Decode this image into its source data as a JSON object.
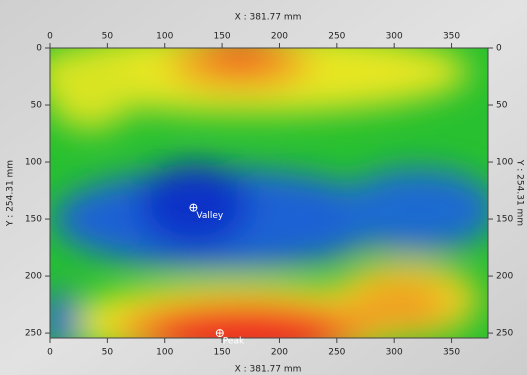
{
  "chart_data": {
    "type": "heatmap",
    "x_title": "X : 381.77 mm",
    "y_title": "Y : 254.31 mm",
    "xlim": [
      0,
      381.77
    ],
    "ylim": [
      0,
      254.31
    ],
    "xticks": [
      0,
      50,
      100,
      150,
      200,
      250,
      300,
      350
    ],
    "yticks": [
      0,
      50,
      100,
      150,
      200,
      250
    ],
    "annotations": [
      {
        "label": "Valley",
        "x": 125,
        "y": 140
      },
      {
        "label": "Peak",
        "x": 148,
        "y": 250
      }
    ]
  }
}
